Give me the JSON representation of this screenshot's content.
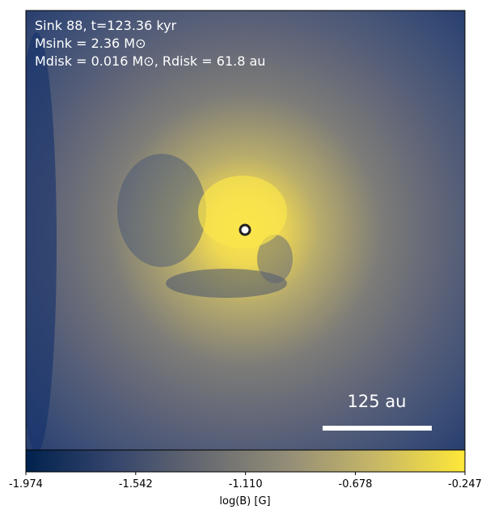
{
  "chart_data": {
    "type": "heatmap",
    "annotations": [
      "Sink 88, t=123.36 kyr",
      "Msink = 2.36 M⊙",
      "Mdisk = 0.016 M⊙, Rdisk = 61.8 au"
    ],
    "scale_bar_label": "125 au",
    "colorbar_label": "log(B) [G]",
    "clim": [
      -1.974,
      -0.247
    ],
    "cticks": [
      -1.974,
      -1.542,
      {
        "value": -1.11,
        "label": "-1.110"
      },
      -0.678,
      -0.247
    ]
  }
}
